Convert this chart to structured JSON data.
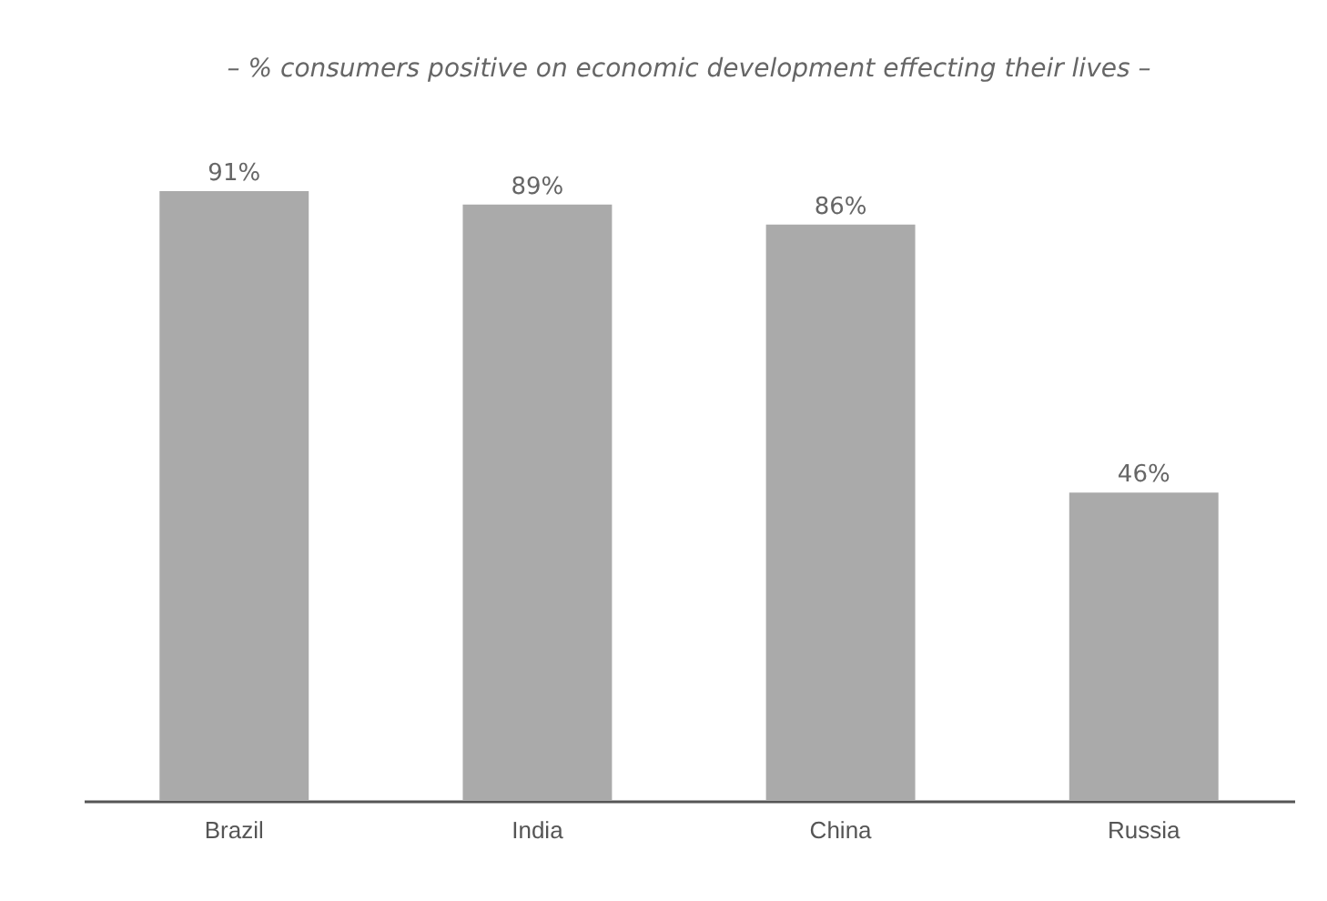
{
  "chart_data": {
    "type": "bar",
    "title": "– % consumers positive on economic development effecting their lives –",
    "categories": [
      "Brazil",
      "India",
      "China",
      "Russia"
    ],
    "values": [
      91,
      89,
      86,
      46
    ],
    "color": "#aaaaaa",
    "value_labels": [
      "91%",
      "89%",
      "86%",
      "46%"
    ]
  }
}
